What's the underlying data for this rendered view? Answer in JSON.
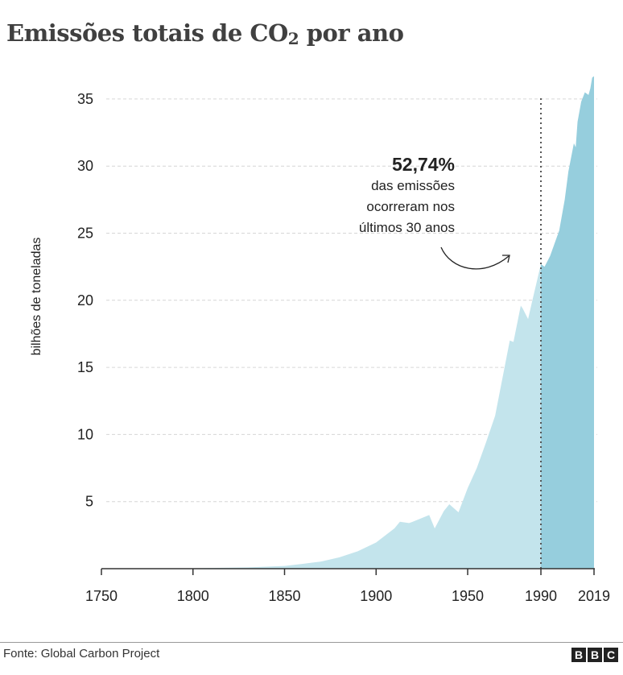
{
  "title": {
    "main": "Emissões totais de CO",
    "sub": "2",
    "rest": " por ano"
  },
  "source": "Fonte: Global Carbon Project",
  "logo": "BBC",
  "annotation": {
    "percent": "52,74%",
    "lines": [
      "das emissões",
      "ocorreram nos",
      "últimos 30 anos"
    ]
  },
  "colors": {
    "before_1990": "#c3e4ec",
    "after_1990": "#96cedd",
    "divider": "#555555",
    "grid": "#d6d6d6"
  },
  "chart_data": {
    "type": "area",
    "title": "Emissões totais de CO2 por ano",
    "xlabel": "",
    "ylabel": "bilhões de toneladas",
    "xlim": [
      1750,
      2019
    ],
    "ylim": [
      0,
      37
    ],
    "x_ticks": [
      1750,
      1800,
      1850,
      1900,
      1950,
      1990,
      2019
    ],
    "y_ticks": [
      5,
      10,
      15,
      20,
      25,
      30,
      35
    ],
    "grid": true,
    "highlight_from": 1990,
    "x": [
      1750,
      1800,
      1830,
      1850,
      1860,
      1870,
      1880,
      1890,
      1900,
      1910,
      1913,
      1918,
      1920,
      1929,
      1932,
      1937,
      1940,
      1945,
      1950,
      1955,
      1960,
      1965,
      1970,
      1973,
      1975,
      1979,
      1980,
      1983,
      1985,
      1990,
      1992,
      1995,
      2000,
      2003,
      2005,
      2008,
      2009,
      2010,
      2012,
      2014,
      2016,
      2017,
      2018,
      2019
    ],
    "y": [
      0.01,
      0.03,
      0.1,
      0.2,
      0.36,
      0.53,
      0.85,
      1.3,
      1.95,
      3.0,
      3.5,
      3.4,
      3.5,
      4.0,
      3.0,
      4.3,
      4.8,
      4.2,
      6.0,
      7.5,
      9.4,
      11.4,
      14.9,
      17.0,
      16.9,
      19.6,
      19.4,
      18.6,
      19.8,
      22.7,
      22.5,
      23.3,
      25.2,
      27.5,
      29.6,
      31.7,
      31.4,
      33.3,
      34.8,
      35.5,
      35.3,
      35.8,
      36.6,
      36.7
    ]
  }
}
